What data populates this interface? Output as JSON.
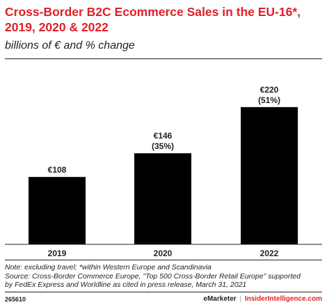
{
  "chart": {
    "title_line1": "Cross-Border B2C Ecommerce Sales in the EU-16*,",
    "title_line2": "2019, 2020 & 2022",
    "subtitle": "billions of € and % change"
  },
  "chart_data": {
    "type": "bar",
    "categories": [
      "2019",
      "2020",
      "2022"
    ],
    "values": [
      108,
      146,
      220
    ],
    "value_labels": [
      "€108",
      "€146",
      "€220"
    ],
    "change_labels": [
      "",
      "(35%)",
      "(51%)"
    ],
    "unit": "billions of €",
    "ylim": [
      0,
      260
    ],
    "bar_color": "#000000",
    "grid": false,
    "legend": "none"
  },
  "notes": {
    "line1": "Note: excluding travel; *within Western Europe and Scandinavia",
    "line2": "Source: Cross-Border Commerce Europe, \"Top 500 Cross-Border Retail Europe\" supported",
    "line3": "by FedEx Express and Worldline as cited in press release, March 31, 2021"
  },
  "footer": {
    "id": "265610",
    "brand": "eMarketer",
    "separator": "|",
    "brand2": "InsiderIntelligence.com"
  },
  "colors": {
    "title": "#e21f26",
    "text": "#222222"
  }
}
